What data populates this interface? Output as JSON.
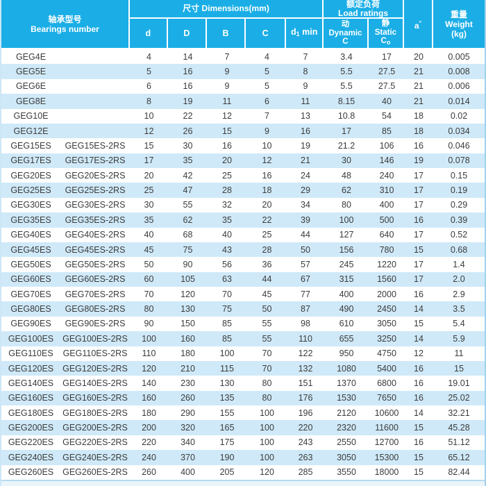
{
  "colors": {
    "header_bg": "#1BAEE6",
    "header_text": "#FFFFFF",
    "row_alt_bg": "#CFE9F8",
    "row_bg": "#FFFFFF",
    "body_text": "#3B3B3B",
    "outer_border": "#9ED2EE"
  },
  "table": {
    "header": {
      "bearings": {
        "zh": "轴承型号",
        "en": "Bearings number"
      },
      "dims": {
        "title": "尺寸  Dimensions(mm)",
        "d": "d",
        "D": "D",
        "B": "B",
        "C": "C",
        "d1": {
          "base": "d",
          "sub": "1",
          "rest": " min"
        }
      },
      "load": {
        "title_zh": "额定负荷",
        "title_en": "Load ratings",
        "dynamic": {
          "zh": "动",
          "en": "Dynamic",
          "sym": "C"
        },
        "static": {
          "zh": "静",
          "en": "Static",
          "sym": "C",
          "sub": "o"
        }
      },
      "angle": {
        "base": "a",
        "sup": "°"
      },
      "weight": {
        "zh": "重量",
        "en": "Weight",
        "unit": "(kg)"
      }
    },
    "rows": [
      [
        "GEG4E",
        "",
        "4",
        "14",
        "7",
        "4",
        "7",
        "3.4",
        "17",
        "20",
        "0.005"
      ],
      [
        "GEG5E",
        "",
        "5",
        "16",
        "9",
        "5",
        "8",
        "5.5",
        "27.5",
        "21",
        "0.008"
      ],
      [
        "GEG6E",
        "",
        "6",
        "16",
        "9",
        "5",
        "9",
        "5.5",
        "27.5",
        "21",
        "0.006"
      ],
      [
        "GEG8E",
        "",
        "8",
        "19",
        "11",
        "6",
        "11",
        "8.15",
        "40",
        "21",
        "0.014"
      ],
      [
        "GEG10E",
        "",
        "10",
        "22",
        "12",
        "7",
        "13",
        "10.8",
        "54",
        "18",
        "0.02"
      ],
      [
        "GEG12E",
        "",
        "12",
        "26",
        "15",
        "9",
        "16",
        "17",
        "85",
        "18",
        "0.034"
      ],
      [
        "GEG15ES",
        "GEG15ES-2RS",
        "15",
        "30",
        "16",
        "10",
        "19",
        "21.2",
        "106",
        "16",
        "0.046"
      ],
      [
        "GEG17ES",
        "GEG17ES-2RS",
        "17",
        "35",
        "20",
        "12",
        "21",
        "30",
        "146",
        "19",
        "0.078"
      ],
      [
        "GEG20ES",
        "GEG20ES-2RS",
        "20",
        "42",
        "25",
        "16",
        "24",
        "48",
        "240",
        "17",
        "0.15"
      ],
      [
        "GEG25ES",
        "GEG25ES-2RS",
        "25",
        "47",
        "28",
        "18",
        "29",
        "62",
        "310",
        "17",
        "0.19"
      ],
      [
        "GEG30ES",
        "GEG30ES-2RS",
        "30",
        "55",
        "32",
        "20",
        "34",
        "80",
        "400",
        "17",
        "0.29"
      ],
      [
        "GEG35ES",
        "GEG35ES-2RS",
        "35",
        "62",
        "35",
        "22",
        "39",
        "100",
        "500",
        "16",
        "0.39"
      ],
      [
        "GEG40ES",
        "GEG40ES-2RS",
        "40",
        "68",
        "40",
        "25",
        "44",
        "127",
        "640",
        "17",
        "0.52"
      ],
      [
        "GEG45ES",
        "GEG45ES-2RS",
        "45",
        "75",
        "43",
        "28",
        "50",
        "156",
        "780",
        "15",
        "0.68"
      ],
      [
        "GEG50ES",
        "GEG50ES-2RS",
        "50",
        "90",
        "56",
        "36",
        "57",
        "245",
        "1220",
        "17",
        "1.4"
      ],
      [
        "GEG60ES",
        "GEG60ES-2RS",
        "60",
        "105",
        "63",
        "44",
        "67",
        "315",
        "1560",
        "17",
        "2.0"
      ],
      [
        "GEG70ES",
        "GEG70ES-2RS",
        "70",
        "120",
        "70",
        "45",
        "77",
        "400",
        "2000",
        "16",
        "2.9"
      ],
      [
        "GEG80ES",
        "GEG80ES-2RS",
        "80",
        "130",
        "75",
        "50",
        "87",
        "490",
        "2450",
        "14",
        "3.5"
      ],
      [
        "GEG90ES",
        "GEG90ES-2RS",
        "90",
        "150",
        "85",
        "55",
        "98",
        "610",
        "3050",
        "15",
        "5.4"
      ],
      [
        "GEG100ES",
        "GEG100ES-2RS",
        "100",
        "160",
        "85",
        "55",
        "110",
        "655",
        "3250",
        "14",
        "5.9"
      ],
      [
        "GEG110ES",
        "GEG110ES-2RS",
        "110",
        "180",
        "100",
        "70",
        "122",
        "950",
        "4750",
        "12",
        "11"
      ],
      [
        "GEG120ES",
        "GEG120ES-2RS",
        "120",
        "210",
        "115",
        "70",
        "132",
        "1080",
        "5400",
        "16",
        "15"
      ],
      [
        "GEG140ES",
        "GEG140ES-2RS",
        "140",
        "230",
        "130",
        "80",
        "151",
        "1370",
        "6800",
        "16",
        "19.01"
      ],
      [
        "GEG160ES",
        "GEG160ES-2RS",
        "160",
        "260",
        "135",
        "80",
        "176",
        "1530",
        "7650",
        "16",
        "25.02"
      ],
      [
        "GEG180ES",
        "GEG180ES-2RS",
        "180",
        "290",
        "155",
        "100",
        "196",
        "2120",
        "10600",
        "14",
        "32.21"
      ],
      [
        "GEG200ES",
        "GEG200ES-2RS",
        "200",
        "320",
        "165",
        "100",
        "220",
        "2320",
        "11600",
        "15",
        "45.28"
      ],
      [
        "GEG220ES",
        "GEG220ES-2RS",
        "220",
        "340",
        "175",
        "100",
        "243",
        "2550",
        "12700",
        "16",
        "51.12"
      ],
      [
        "GEG240ES",
        "GEG240ES-2RS",
        "240",
        "370",
        "190",
        "100",
        "263",
        "3050",
        "15300",
        "15",
        "65.12"
      ],
      [
        "GEG260ES",
        "GEG260ES-2RS",
        "260",
        "400",
        "205",
        "120",
        "285",
        "3550",
        "18000",
        "15",
        "82.44"
      ]
    ]
  }
}
